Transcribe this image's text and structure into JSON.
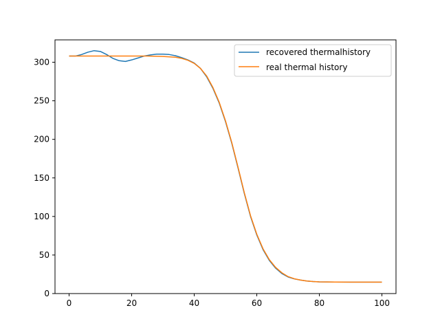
{
  "chart_data": {
    "type": "line",
    "title": "",
    "xlabel": "",
    "ylabel": "",
    "xlim": [
      -4.5,
      104.5
    ],
    "ylim": [
      0,
      329
    ],
    "x_ticks": [
      0,
      20,
      40,
      60,
      80,
      100
    ],
    "y_ticks": [
      0,
      50,
      100,
      150,
      200,
      250,
      300
    ],
    "grid": false,
    "legend_position": "top-right",
    "series": [
      {
        "name": "recovered thermalhistory",
        "color": "#1f77b4",
        "x": [
          0,
          2,
          4,
          6,
          8,
          10,
          12,
          14,
          16,
          18,
          20,
          22,
          24,
          26,
          28,
          30,
          32,
          34,
          36,
          38,
          40,
          42,
          44,
          46,
          48,
          50,
          52,
          54,
          56,
          58,
          60,
          62,
          64,
          66,
          68,
          70,
          72,
          74,
          76,
          78,
          80,
          85,
          90,
          95,
          100
        ],
        "y": [
          308,
          308,
          310,
          313,
          315,
          314,
          310,
          305,
          302,
          301,
          303,
          305.5,
          308,
          309.5,
          310.5,
          310.5,
          310,
          308.5,
          306,
          303,
          299,
          292,
          281,
          266,
          247,
          223,
          195,
          163,
          130,
          100,
          76,
          57,
          43,
          33,
          26,
          21.5,
          19,
          17.5,
          16.3,
          15.6,
          15.2,
          14.9,
          14.8,
          14.8,
          14.8
        ]
      },
      {
        "name": "real thermal history",
        "color": "#ff7f0e",
        "x": [
          0,
          5,
          10,
          15,
          20,
          25,
          30,
          34,
          36,
          38,
          40,
          42,
          44,
          46,
          48,
          50,
          52,
          54,
          56,
          58,
          60,
          62,
          64,
          66,
          68,
          70,
          72,
          74,
          76,
          78,
          80,
          85,
          90,
          95,
          100
        ],
        "y": [
          308,
          308,
          308,
          308,
          308,
          308,
          307.5,
          306.5,
          305,
          302.5,
          298.5,
          292,
          282,
          267,
          248,
          224,
          196,
          164,
          131,
          101,
          77,
          58,
          44,
          34,
          27,
          22,
          19.2,
          17.5,
          16.3,
          15.6,
          15.2,
          14.9,
          14.8,
          14.8,
          14.8
        ]
      }
    ]
  }
}
